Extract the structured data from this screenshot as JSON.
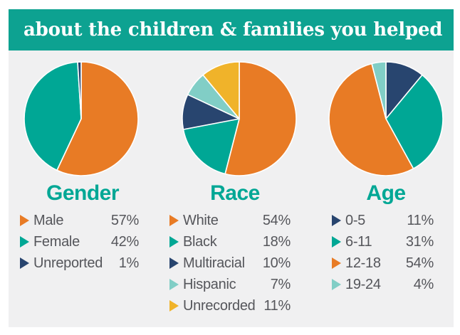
{
  "header": {
    "title": "about the children & families you helped",
    "bg": "#0da291",
    "text_color": "#ffffff"
  },
  "colors": {
    "orange": "#e87b25",
    "teal": "#00a795",
    "navy": "#28456f",
    "light_teal": "#81cec6",
    "gold": "#f0b32a",
    "panel_bg": "#f0f0f1",
    "title_text": "#00a795",
    "legend_text": "#55565b"
  },
  "chart_data": [
    {
      "type": "pie",
      "title": "Gender",
      "start_angle_deg": 0,
      "direction": "clockwise",
      "legend_position": "below",
      "slices": [
        {
          "label": "Male",
          "value": 57,
          "pct_label": "57%",
          "color": "orange"
        },
        {
          "label": "Female",
          "value": 42,
          "pct_label": "42%",
          "color": "teal"
        },
        {
          "label": "Unreported",
          "value": 1,
          "pct_label": "1%",
          "color": "navy"
        }
      ]
    },
    {
      "type": "pie",
      "title": "Race",
      "start_angle_deg": 0,
      "direction": "clockwise",
      "legend_position": "below",
      "slices": [
        {
          "label": "White",
          "value": 54,
          "pct_label": "54%",
          "color": "orange"
        },
        {
          "label": "Black",
          "value": 18,
          "pct_label": "18%",
          "color": "teal"
        },
        {
          "label": "Multiracial",
          "value": 10,
          "pct_label": "10%",
          "color": "navy"
        },
        {
          "label": "Hispanic",
          "value": 7,
          "pct_label": "7%",
          "color": "light_teal"
        },
        {
          "label": "Unrecorded",
          "value": 11,
          "pct_label": "11%",
          "color": "gold"
        }
      ]
    },
    {
      "type": "pie",
      "title": "Age",
      "start_angle_deg": 0,
      "direction": "clockwise",
      "legend_position": "below",
      "slices": [
        {
          "label": "0-5",
          "value": 11,
          "pct_label": "11%",
          "color": "navy"
        },
        {
          "label": "6-11",
          "value": 31,
          "pct_label": "31%",
          "color": "teal"
        },
        {
          "label": "12-18",
          "value": 54,
          "pct_label": "54%",
          "color": "orange"
        },
        {
          "label": "19-24",
          "value": 4,
          "pct_label": "4%",
          "color": "light_teal"
        }
      ]
    }
  ]
}
